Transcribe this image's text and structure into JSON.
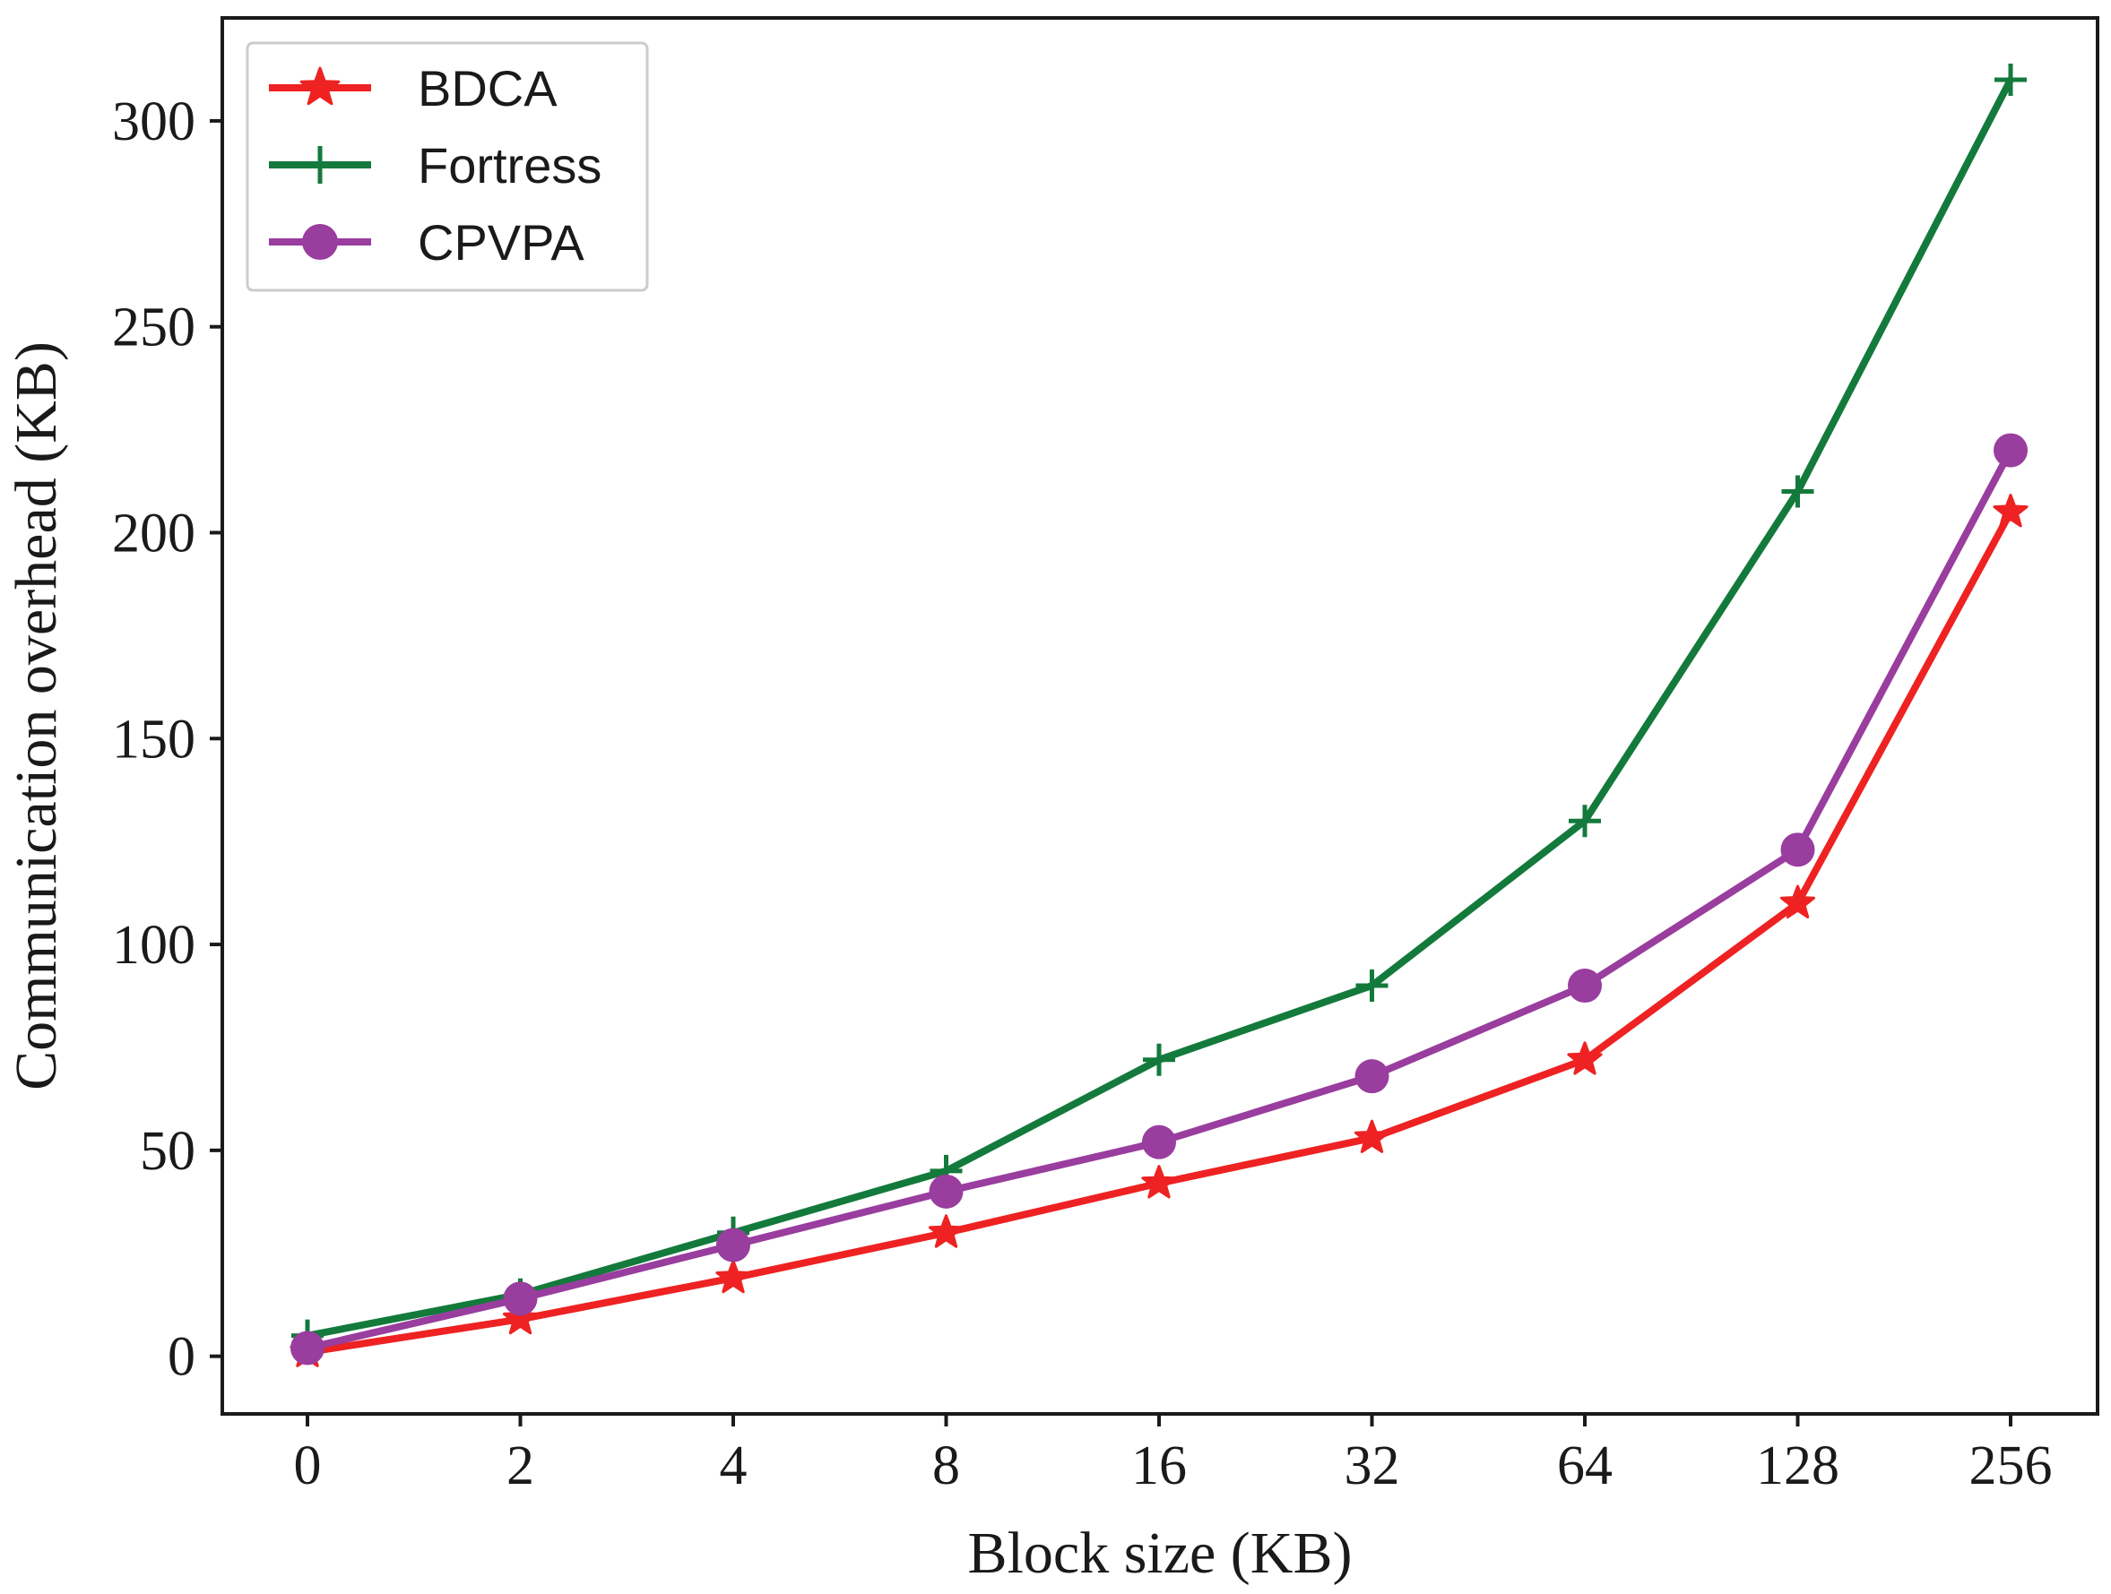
{
  "chart_data": {
    "type": "line",
    "categories": [
      "0",
      "2",
      "4",
      "8",
      "16",
      "32",
      "64",
      "128",
      "256"
    ],
    "series": [
      {
        "name": "BDCA",
        "color": "#ee2222",
        "marker": "star",
        "values": [
          1,
          9,
          19,
          30,
          42,
          53,
          72,
          110,
          205
        ]
      },
      {
        "name": "Fortress",
        "color": "#137a3c",
        "marker": "plus",
        "values": [
          5,
          15,
          30,
          45,
          72,
          90,
          130,
          210,
          310
        ]
      },
      {
        "name": "CPVPA",
        "color": "#993d9e",
        "marker": "circle",
        "values": [
          2,
          14,
          27,
          40,
          52,
          68,
          90,
          123,
          220
        ]
      }
    ],
    "xlabel": "Block size (KB)",
    "ylabel": "Communication overhead (KB)",
    "yticks": [
      0,
      50,
      100,
      150,
      200,
      250,
      300
    ],
    "ylim": [
      -14,
      325
    ],
    "grid": false,
    "legend_position": "top-left"
  }
}
